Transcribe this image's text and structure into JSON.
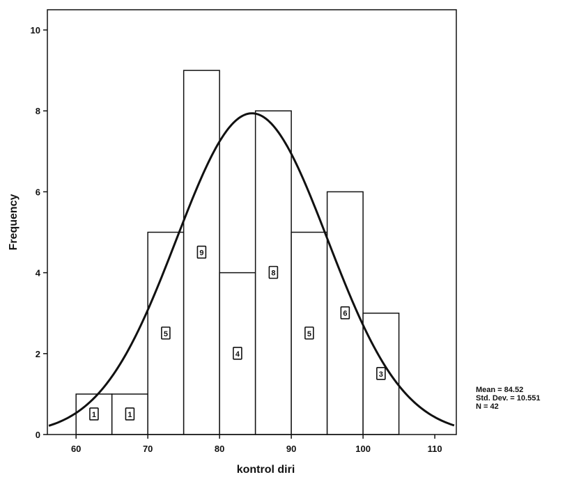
{
  "chart_data": {
    "type": "histogram",
    "xlabel": "kontrol diri",
    "ylabel": "Frequency",
    "xlim": [
      56,
      113
    ],
    "ylim": [
      0,
      10.5
    ],
    "x_ticks": [
      60,
      70,
      80,
      90,
      100,
      110
    ],
    "y_ticks": [
      0,
      2,
      4,
      6,
      8,
      10
    ],
    "bins": [
      {
        "from": 60,
        "to": 65,
        "count": 1
      },
      {
        "from": 65,
        "to": 70,
        "count": 1
      },
      {
        "from": 70,
        "to": 75,
        "count": 5
      },
      {
        "from": 75,
        "to": 80,
        "count": 9
      },
      {
        "from": 80,
        "to": 85,
        "count": 4
      },
      {
        "from": 85,
        "to": 90,
        "count": 8
      },
      {
        "from": 90,
        "to": 95,
        "count": 5
      },
      {
        "from": 95,
        "to": 100,
        "count": 6
      },
      {
        "from": 100,
        "to": 105,
        "count": 3
      }
    ],
    "normal_curve": {
      "mean": 84.52,
      "std": 10.551,
      "n": 42,
      "bin_width": 5
    },
    "stats_box": {
      "mean": "Mean = 84.52",
      "std": "Std. Dev. = 10.551",
      "n": "N = 42"
    },
    "grid": false,
    "bar_fill": "#ffffff",
    "curve_color": "#111111"
  }
}
